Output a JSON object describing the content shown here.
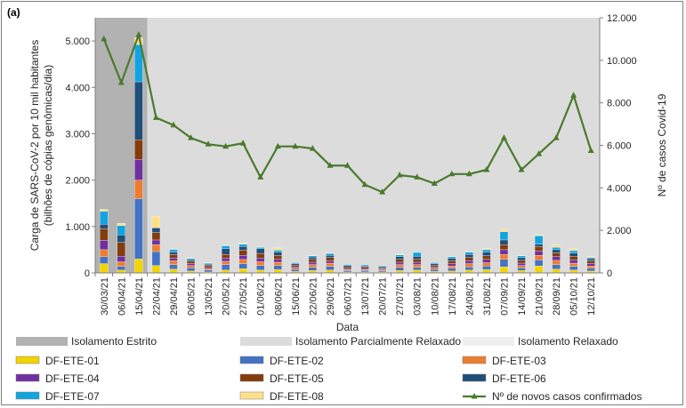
{
  "chart_data": {
    "type": "bar",
    "panel_label": "(a)",
    "xlabel": "Data",
    "ylabel_left_line1": "Carga de SARS-CoV-2 por 10 mil habitantes",
    "ylabel_left_line2": "(bilhões de cópias genômicas/dia)",
    "ylabel_right": "Nº de casos Covid-19",
    "y_left_lim": [
      0,
      5500
    ],
    "y_left_ticks": [
      "0",
      "1.000",
      "2.000",
      "3.000",
      "4.000",
      "5.000"
    ],
    "y_left_tick_values": [
      0,
      1000,
      2000,
      3000,
      4000,
      5000
    ],
    "y_right_lim": [
      0,
      12000
    ],
    "y_right_ticks": [
      "0",
      "2.000",
      "4.000",
      "6.000",
      "8.000",
      "10.000",
      "12.000"
    ],
    "y_right_tick_values": [
      0,
      2000,
      4000,
      6000,
      8000,
      10000,
      12000
    ],
    "categories": [
      "30/03/21",
      "06/04/21",
      "15/04/21",
      "22/04/21",
      "29/04/21",
      "06/05/21",
      "13/05/21",
      "20/05/21",
      "27/05/21",
      "01/06/21",
      "08/06/21",
      "15/06/21",
      "22/06/21",
      "29/06/21",
      "06/07/21",
      "13/07/21",
      "20/07/21",
      "27/07/21",
      "03/08/21",
      "10/08/21",
      "17/08/21",
      "24/08/21",
      "31/08/21",
      "07/09/21",
      "14/09/21",
      "21/09/21",
      "28/09/21",
      "05/10/21",
      "12/10/21"
    ],
    "periods": [
      {
        "name": "Isolamento Estrito",
        "from": 0,
        "to": 2,
        "color": "#b2b2b2"
      },
      {
        "name": "Isolamento Parcialmente Relaxado",
        "from": 3,
        "to": 28,
        "color": "#dcdcdc"
      },
      {
        "name": "Isolamento Relaxado",
        "color": "#efefef"
      }
    ],
    "series": [
      {
        "name": "DF-ETE-01",
        "color": "#f2d400",
        "values": [
          200,
          60,
          300,
          160,
          80,
          40,
          20,
          60,
          90,
          60,
          70,
          30,
          50,
          60,
          20,
          20,
          20,
          50,
          60,
          30,
          40,
          60,
          70,
          130,
          50,
          150,
          80,
          60,
          40
        ]
      },
      {
        "name": "DF-ETE-02",
        "color": "#4472c4",
        "values": [
          150,
          80,
          1300,
          300,
          100,
          70,
          40,
          120,
          110,
          100,
          90,
          40,
          70,
          80,
          30,
          30,
          25,
          70,
          60,
          40,
          60,
          70,
          80,
          160,
          60,
          130,
          100,
          80,
          60
        ]
      },
      {
        "name": "DF-ETE-03",
        "color": "#ed7d31",
        "values": [
          150,
          100,
          400,
          150,
          80,
          50,
          30,
          70,
          90,
          80,
          70,
          30,
          60,
          70,
          20,
          20,
          20,
          60,
          60,
          30,
          50,
          70,
          70,
          110,
          50,
          100,
          90,
          70,
          50
        ]
      },
      {
        "name": "DF-ETE-04",
        "color": "#7030a0",
        "values": [
          200,
          120,
          450,
          100,
          60,
          40,
          30,
          70,
          90,
          80,
          60,
          30,
          50,
          50,
          20,
          20,
          20,
          50,
          50,
          30,
          50,
          60,
          70,
          100,
          50,
          90,
          80,
          70,
          50
        ]
      },
      {
        "name": "DF-ETE-05",
        "color": "#843c0c",
        "values": [
          250,
          300,
          420,
          160,
          80,
          50,
          40,
          80,
          110,
          100,
          90,
          40,
          60,
          70,
          40,
          30,
          25,
          60,
          60,
          40,
          60,
          70,
          80,
          110,
          60,
          100,
          80,
          80,
          60
        ]
      },
      {
        "name": "DF-ETE-06",
        "color": "#1f4e79",
        "values": [
          100,
          160,
          1250,
          100,
          50,
          30,
          30,
          120,
          80,
          100,
          70,
          30,
          50,
          50,
          30,
          30,
          25,
          60,
          70,
          30,
          50,
          70,
          80,
          100,
          60,
          50,
          70,
          70,
          40
        ]
      },
      {
        "name": "DF-ETE-07",
        "color": "#13a4df",
        "values": [
          280,
          200,
          800,
          0,
          50,
          30,
          20,
          60,
          50,
          30,
          40,
          20,
          30,
          40,
          20,
          20,
          15,
          40,
          80,
          20,
          40,
          50,
          50,
          180,
          40,
          180,
          50,
          50,
          30
        ]
      },
      {
        "name": "DF-ETE-08",
        "color": "#ffe08a",
        "values": [
          40,
          50,
          150,
          250,
          0,
          10,
          10,
          0,
          20,
          10,
          50,
          0,
          10,
          10,
          0,
          0,
          0,
          20,
          0,
          0,
          10,
          10,
          20,
          50,
          10,
          20,
          50,
          40,
          20
        ]
      }
    ],
    "line_series": {
      "name": "Nº de novos casos confirmados",
      "color": "#4a7a2c",
      "axis": "right",
      "values": [
        11000,
        8950,
        11200,
        7300,
        6950,
        6350,
        6050,
        5950,
        6100,
        4500,
        5950,
        5950,
        5850,
        5050,
        5050,
        4150,
        3800,
        4600,
        4500,
        4200,
        4650,
        4650,
        4850,
        6350,
        4850,
        5600,
        6350,
        8350,
        5750
      ]
    },
    "legend": {
      "items": [
        "Isolamento Estrito",
        "Isolamento Parcialmente Relaxado",
        "Isolamento Relaxado",
        "DF-ETE-01",
        "DF-ETE-02",
        "DF-ETE-03",
        "DF-ETE-04",
        "DF-ETE-05",
        "DF-ETE-06",
        "DF-ETE-07",
        "DF-ETE-08",
        "Nº de novos casos confirmados"
      ]
    }
  }
}
